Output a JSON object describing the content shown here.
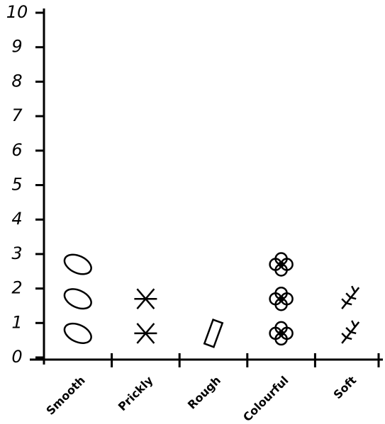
{
  "chart_data": {
    "type": "pictogram",
    "categories": [
      "Smooth",
      "Prickly",
      "Rough",
      "Colourful",
      "Soft"
    ],
    "values": [
      3,
      2,
      1,
      3,
      2
    ],
    "color": "#000000",
    "ylim": [
      0,
      10
    ],
    "yticks": [
      0,
      1,
      2,
      3,
      4,
      5,
      6,
      7,
      8,
      9,
      10
    ]
  }
}
